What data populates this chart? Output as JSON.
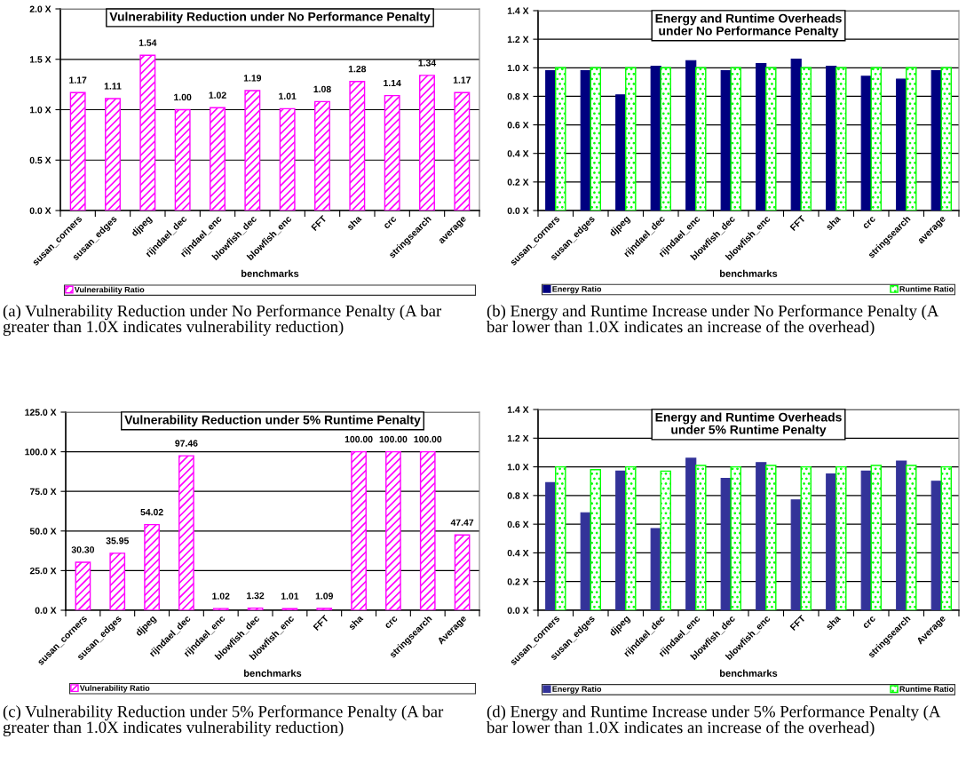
{
  "chart_data": [
    {
      "type": "bar",
      "title": "Vulnerability Reduction under No Performance Penalty",
      "xlabel": "benchmarks",
      "categories": [
        "susan_corners",
        "susan_edges",
        "djpeg",
        "rijndael_dec",
        "rijndael_enc",
        "blowfish_dec",
        "blowfish_enc",
        "FFT",
        "sha",
        "crc",
        "stringsearch",
        "average"
      ],
      "series": [
        {
          "name": "Vulnerability Ratio",
          "color": "#ff00ff",
          "values": [
            1.17,
            1.11,
            1.54,
            1.0,
            1.02,
            1.19,
            1.01,
            1.08,
            1.28,
            1.14,
            1.34,
            1.17
          ],
          "value_labels": [
            "1.17",
            "1.11",
            "1.54",
            "1.00",
            "1.02",
            "1.19",
            "1.01",
            "1.08",
            "1.28",
            "1.14",
            "1.34",
            "1.17"
          ]
        }
      ],
      "ylim": [
        0,
        2.0
      ],
      "yticks": [
        {
          "value": 0,
          "label": "0.0 X"
        },
        {
          "value": 0.5,
          "label": "0.5 X"
        },
        {
          "value": 1.0,
          "label": "1.0 X"
        },
        {
          "value": 1.5,
          "label": "1.5 X"
        },
        {
          "value": 2.0,
          "label": "2.0 X"
        }
      ],
      "grid": "y",
      "legend": "bottom",
      "annotations": [
        "(a) Vulnerability Reduction under No Performance Penalty (A bar greater than 1.0X indicates vulnerability reduction)"
      ]
    },
    {
      "type": "bar",
      "title": "Energy and Runtime Overheads\nunder No Performance Penalty",
      "xlabel": "benchmarks",
      "categories": [
        "susan_corners",
        "susan_edges",
        "djpeg",
        "rijndael_dec",
        "rijndael_enc",
        "blowfish_dec",
        "blowfish_enc",
        "FFT",
        "sha",
        "crc",
        "stringsearch",
        "average"
      ],
      "series": [
        {
          "name": "Energy Ratio",
          "color": "#000080",
          "values": [
            0.98,
            0.98,
            0.81,
            1.01,
            1.05,
            0.98,
            1.03,
            1.06,
            1.01,
            0.94,
            0.92,
            0.98
          ]
        },
        {
          "name": "Runtime Ratio",
          "color": "#00ff00",
          "values": [
            1.0,
            1.0,
            1.0,
            1.0,
            1.0,
            1.0,
            1.0,
            1.0,
            1.0,
            1.0,
            1.0,
            1.0
          ]
        }
      ],
      "ylim": [
        0,
        1.4
      ],
      "yticks": [
        {
          "value": 0,
          "label": "0.0 X"
        },
        {
          "value": 0.2,
          "label": "0.2 X"
        },
        {
          "value": 0.4,
          "label": "0.4 X"
        },
        {
          "value": 0.6,
          "label": "0.6 X"
        },
        {
          "value": 0.8,
          "label": "0.8 X"
        },
        {
          "value": 1.0,
          "label": "1.0 X"
        },
        {
          "value": 1.2,
          "label": "1.2 X"
        },
        {
          "value": 1.4,
          "label": "1.4 X"
        }
      ],
      "grid": "y",
      "legend": "bottom",
      "annotations": [
        "(b) Energy and Runtime Increase under No Performance Penalty (A bar lower than 1.0X indicates an increase of the overhead)"
      ]
    },
    {
      "type": "bar",
      "title": "Vulnerability Reduction under 5% Runtime Penalty",
      "xlabel": "benchmarks",
      "categories": [
        "susan_corners",
        "susan_edges",
        "djpeg",
        "rijndael_dec",
        "rijndael_enc",
        "blowfish_dec",
        "blowfish_enc",
        "FFT",
        "sha",
        "crc",
        "stringsearch",
        "Average"
      ],
      "series": [
        {
          "name": "Vulnerability Ratio",
          "color": "#ff00ff",
          "values": [
            30.3,
            35.95,
            54.02,
            97.46,
            1.02,
            1.32,
            1.01,
            1.09,
            100.0,
            100.0,
            100.0,
            47.47
          ],
          "value_labels": [
            "30.30",
            "35.95",
            "54.02",
            "97.46",
            "1.02",
            "1.32",
            "1.01",
            "1.09",
            "100.00",
            "100.00",
            "100.00",
            "47.47"
          ]
        }
      ],
      "ylim": [
        0,
        125.0
      ],
      "yticks": [
        {
          "value": 0,
          "label": "0.0 X"
        },
        {
          "value": 25,
          "label": "25.0 X"
        },
        {
          "value": 50,
          "label": "50.0 X"
        },
        {
          "value": 75,
          "label": "75.0 X"
        },
        {
          "value": 100,
          "label": "100.0 X"
        },
        {
          "value": 125,
          "label": "125.0 X"
        }
      ],
      "grid": "y",
      "legend": "bottom",
      "annotations": [
        "(c) Vulnerability Reduction under 5% Performance Penalty (A bar greater than 1.0X indicates vulnerability reduction)"
      ]
    },
    {
      "type": "bar",
      "title": "Energy and Runtime Overheads\nunder 5% Runtime Penalty",
      "xlabel": "benchmarks",
      "categories": [
        "susan_corners",
        "susan_edges",
        "djpeg",
        "rijndael_dec",
        "rijndael_enc",
        "blowfish_dec",
        "blowfish_enc",
        "FFT",
        "sha",
        "crc",
        "stringsearch",
        "Average"
      ],
      "series": [
        {
          "name": "Energy Ratio",
          "color": "#333399",
          "values": [
            0.89,
            0.68,
            0.97,
            0.57,
            1.06,
            0.92,
            1.03,
            0.77,
            0.95,
            0.97,
            1.04,
            0.9
          ]
        },
        {
          "name": "Runtime Ratio",
          "color": "#00ff00",
          "values": [
            1.0,
            0.98,
            1.0,
            0.97,
            1.01,
            1.0,
            1.01,
            1.0,
            1.0,
            1.01,
            1.01,
            1.0
          ]
        }
      ],
      "ylim": [
        0,
        1.4
      ],
      "yticks": [
        {
          "value": 0,
          "label": "0.0 X"
        },
        {
          "value": 0.2,
          "label": "0.2 X"
        },
        {
          "value": 0.4,
          "label": "0.4 X"
        },
        {
          "value": 0.6,
          "label": "0.6 X"
        },
        {
          "value": 0.8,
          "label": "0.8 X"
        },
        {
          "value": 1.0,
          "label": "1.0 X"
        },
        {
          "value": 1.2,
          "label": "1.2 X"
        },
        {
          "value": 1.4,
          "label": "1.4 X"
        }
      ],
      "grid": "y",
      "legend": "bottom",
      "annotations": [
        "(d) Energy and Runtime Increase under 5% Performance Penalty (A bar lower than 1.0X indicates an increase of the overhead)"
      ]
    }
  ]
}
